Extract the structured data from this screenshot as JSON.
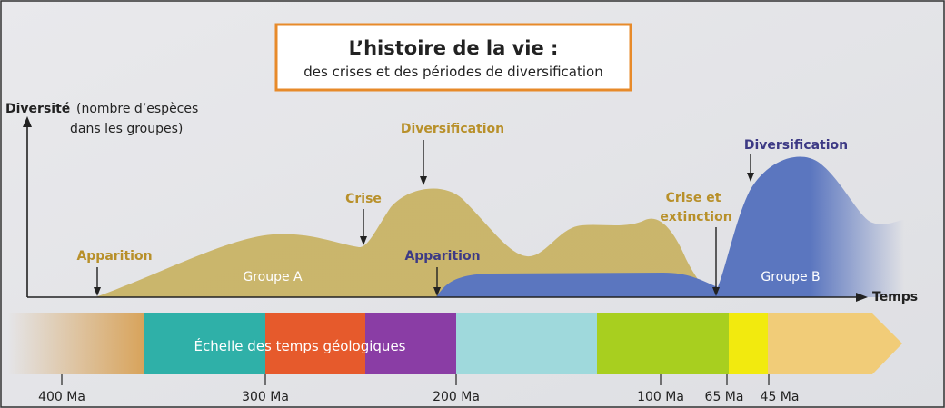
{
  "title": {
    "main": "L’histoire de la vie :",
    "sub": "des crises et des périodes de diversification"
  },
  "axes": {
    "y_label_bold": "Diversité",
    "y_label_rest1": "(nombre d’espèces",
    "y_label_rest2": "dans les groupes)",
    "x_label": "Temps"
  },
  "group_a": {
    "name": "Groupe A",
    "color": "#c9b366",
    "label_color": "#b8902a",
    "apparition": "Apparition",
    "crise": "Crise",
    "diversification": "Diversification",
    "crise_extinction_line1": "Crise et",
    "crise_extinction_line2": "extinction"
  },
  "group_b": {
    "name": "Groupe B",
    "color": "#5b76bf",
    "label_color": "#3d3a85",
    "apparition": "Apparition",
    "diversification": "Diversification"
  },
  "timescale": {
    "label": "Échelle des temps géologiques",
    "colors": [
      "#d8a35a",
      "#2fb0a8",
      "#e65a2c",
      "#8a3da5",
      "#9fd9dc",
      "#a8cf1f",
      "#f2ea0e",
      "#f1cc78"
    ],
    "ticks": [
      "400 Ma",
      "300 Ma",
      "200 Ma",
      "100 Ma",
      "65 Ma",
      "45 Ma"
    ]
  }
}
